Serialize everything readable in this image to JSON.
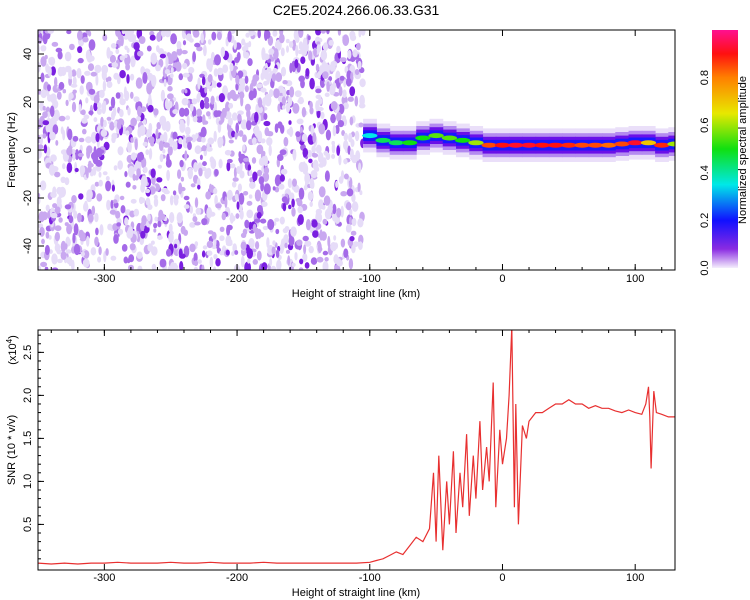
{
  "title": "C2E5.2024.266.06.33.G31",
  "chart_data": [
    {
      "type": "heatmap",
      "xlabel": "Height of straight line (km)",
      "ylabel": "Frequency (Hz)",
      "xlim": [
        -350,
        130
      ],
      "ylim": [
        -50,
        50
      ],
      "xticks": [
        -300,
        -200,
        -100,
        0,
        100
      ],
      "yticks": [
        -40,
        -20,
        0,
        20,
        40
      ],
      "colorbar": {
        "label": "Normalized spectral amplitude",
        "range": [
          0,
          1
        ],
        "ticks": [
          "0.0",
          "0.2",
          "0.4",
          "0.6",
          "0.8"
        ]
      },
      "noise_region": {
        "x_range": [
          -350,
          -105
        ],
        "amplitude_range": [
          0,
          0.15
        ]
      },
      "signal_band": {
        "x": [
          -105,
          -95,
          -85,
          -75,
          -65,
          -55,
          -45,
          -35,
          -25,
          -15,
          -5,
          5,
          15,
          25,
          35,
          45,
          55,
          65,
          75,
          85,
          95,
          105,
          115,
          125
        ],
        "center_freq": [
          6,
          4,
          3,
          3,
          5,
          6,
          5,
          4,
          3,
          2,
          2,
          2,
          2,
          2,
          2,
          2,
          2,
          2,
          2,
          2.5,
          3,
          3,
          2,
          2.5
        ],
        "amplitude": [
          0.35,
          0.45,
          0.45,
          0.5,
          0.5,
          0.55,
          0.55,
          0.5,
          0.6,
          0.85,
          0.9,
          0.92,
          0.92,
          0.9,
          0.9,
          0.88,
          0.85,
          0.85,
          0.82,
          0.85,
          0.92,
          0.7,
          0.88,
          0.6
        ]
      }
    },
    {
      "type": "line",
      "xlabel": "Height of straight line (km)",
      "ylabel": "SNR (10 * v/v)",
      "yscale_label": "(x10",
      "yscale_exp": "4",
      "yscale_close": ")",
      "xlim": [
        -350,
        130
      ],
      "ylim": [
        -0.03,
        2.76
      ],
      "xticks": [
        -300,
        -200,
        -100,
        0,
        100
      ],
      "yticks": [
        "0.5",
        "1.0",
        "1.5",
        "2.0",
        "2.5"
      ],
      "color": "#e83030",
      "series": [
        {
          "name": "SNR",
          "x": [
            -350,
            -340,
            -330,
            -320,
            -310,
            -300,
            -290,
            -280,
            -270,
            -260,
            -250,
            -240,
            -230,
            -220,
            -210,
            -200,
            -190,
            -180,
            -170,
            -160,
            -150,
            -140,
            -130,
            -120,
            -110,
            -100,
            -95,
            -90,
            -85,
            -80,
            -75,
            -70,
            -65,
            -60,
            -55,
            -52,
            -50,
            -48,
            -45,
            -42,
            -40,
            -37,
            -35,
            -32,
            -30,
            -27,
            -25,
            -22,
            -20,
            -17,
            -15,
            -12,
            -10,
            -7,
            -5,
            -2,
            0,
            3,
            5,
            7,
            9,
            10,
            12,
            15,
            18,
            20,
            25,
            30,
            35,
            40,
            45,
            50,
            55,
            60,
            65,
            70,
            75,
            80,
            85,
            90,
            95,
            100,
            105,
            108,
            110,
            111,
            112,
            114,
            116,
            120,
            125,
            130
          ],
          "y": [
            0.05,
            0.04,
            0.05,
            0.04,
            0.05,
            0.05,
            0.06,
            0.05,
            0.05,
            0.05,
            0.06,
            0.05,
            0.05,
            0.06,
            0.05,
            0.05,
            0.05,
            0.06,
            0.05,
            0.05,
            0.05,
            0.05,
            0.05,
            0.05,
            0.05,
            0.06,
            0.08,
            0.1,
            0.14,
            0.18,
            0.15,
            0.25,
            0.35,
            0.3,
            0.45,
            1.1,
            0.3,
            1.3,
            0.2,
            1.0,
            0.5,
            1.35,
            0.4,
            1.1,
            0.7,
            1.55,
            0.6,
            1.3,
            0.8,
            1.7,
            0.9,
            1.4,
            1.0,
            2.15,
            0.7,
            1.6,
            1.2,
            1.5,
            2.0,
            2.8,
            0.7,
            1.9,
            0.5,
            1.65,
            1.5,
            1.7,
            1.8,
            1.8,
            1.85,
            1.9,
            1.9,
            1.95,
            1.9,
            1.9,
            1.85,
            1.88,
            1.85,
            1.85,
            1.82,
            1.8,
            1.83,
            1.8,
            1.78,
            1.9,
            2.1,
            1.75,
            1.15,
            2.05,
            1.8,
            1.78,
            1.75,
            1.75
          ]
        }
      ]
    }
  ]
}
